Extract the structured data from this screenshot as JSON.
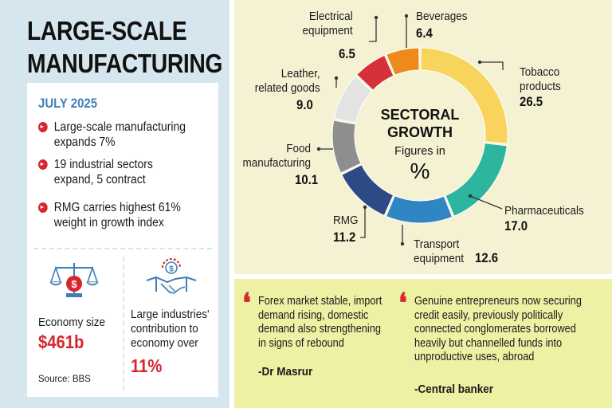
{
  "headline": {
    "line1": "LARGE-SCALE",
    "line2": "MANUFACTURING"
  },
  "summary": {
    "period": "JULY 2025",
    "bullets": [
      "Large-scale manufacturing\nexpands 7%",
      "19 industrial sectors\nexpand, 5 contract",
      "RMG carries highest 61%\nweight in growth index"
    ],
    "economy_size_label": "Economy size",
    "economy_size_value": "$461b",
    "contribution_label": "Large industries'\ncontribution to\neconomy over",
    "contribution_value": "11%",
    "source": "Source: BBS"
  },
  "chart_data": {
    "type": "pie",
    "variant": "donut",
    "title": "SECTORAL GROWTH",
    "subtitle": "Figures in",
    "unit": "%",
    "slices": [
      {
        "label": "Tobacco products",
        "value": 26.5,
        "value_text": "26.5",
        "color": "#f8d45c"
      },
      {
        "label": "Pharmaceuticals",
        "value": 17.0,
        "value_text": "17.0",
        "color": "#2db59d"
      },
      {
        "label": "Transport equipment",
        "value": 12.6,
        "value_text": "12.6",
        "color": "#2f86c3"
      },
      {
        "label": "RMG",
        "value": 11.2,
        "value_text": "11.2",
        "color": "#2e4a86"
      },
      {
        "label": "Food manufacturing",
        "value": 10.1,
        "value_text": "10.1",
        "color": "#8e8e8e"
      },
      {
        "label": "Leather, related goods",
        "value": 9.0,
        "value_text": "9.0",
        "color": "#e3e3e3"
      },
      {
        "label": "Electrical equipment",
        "value": 6.5,
        "value_text": "6.5",
        "color": "#d6303a"
      },
      {
        "label": "Beverages",
        "value": 6.4,
        "value_text": "6.4",
        "color": "#ee8a1c"
      }
    ]
  },
  "chart_labels": {
    "tobacco": "Tobacco\nproducts",
    "pharma": "Pharmaceuticals",
    "transport": "Transport\nequipment",
    "rmg": "RMG",
    "food": "Food\nmanufacturing",
    "leather": "Leather,\nrelated goods",
    "electrical": "Electrical\nequipment",
    "beverages": "Beverages"
  },
  "quotes": [
    {
      "text": "Forex market stable, import\ndemand rising, domestic\ndemand also strengthening\nin signs of rebound",
      "attribution": "-Dr Masrur"
    },
    {
      "text": "Genuine entrepreneurs now securing\ncredit easily, previously politically\nconnected conglomerates borrowed\nheavily but channelled funds into\nunproductive uses, abroad",
      "attribution": "-Central banker"
    }
  ],
  "colors": {
    "accent": "#d6262e",
    "blue": "#3f7fb7",
    "left_bg": "#d6e6ee",
    "right_bg": "#f5f2d4",
    "quote_bg": "#eef0a4"
  },
  "icons": [
    "scale-icon",
    "handshake-icon"
  ]
}
